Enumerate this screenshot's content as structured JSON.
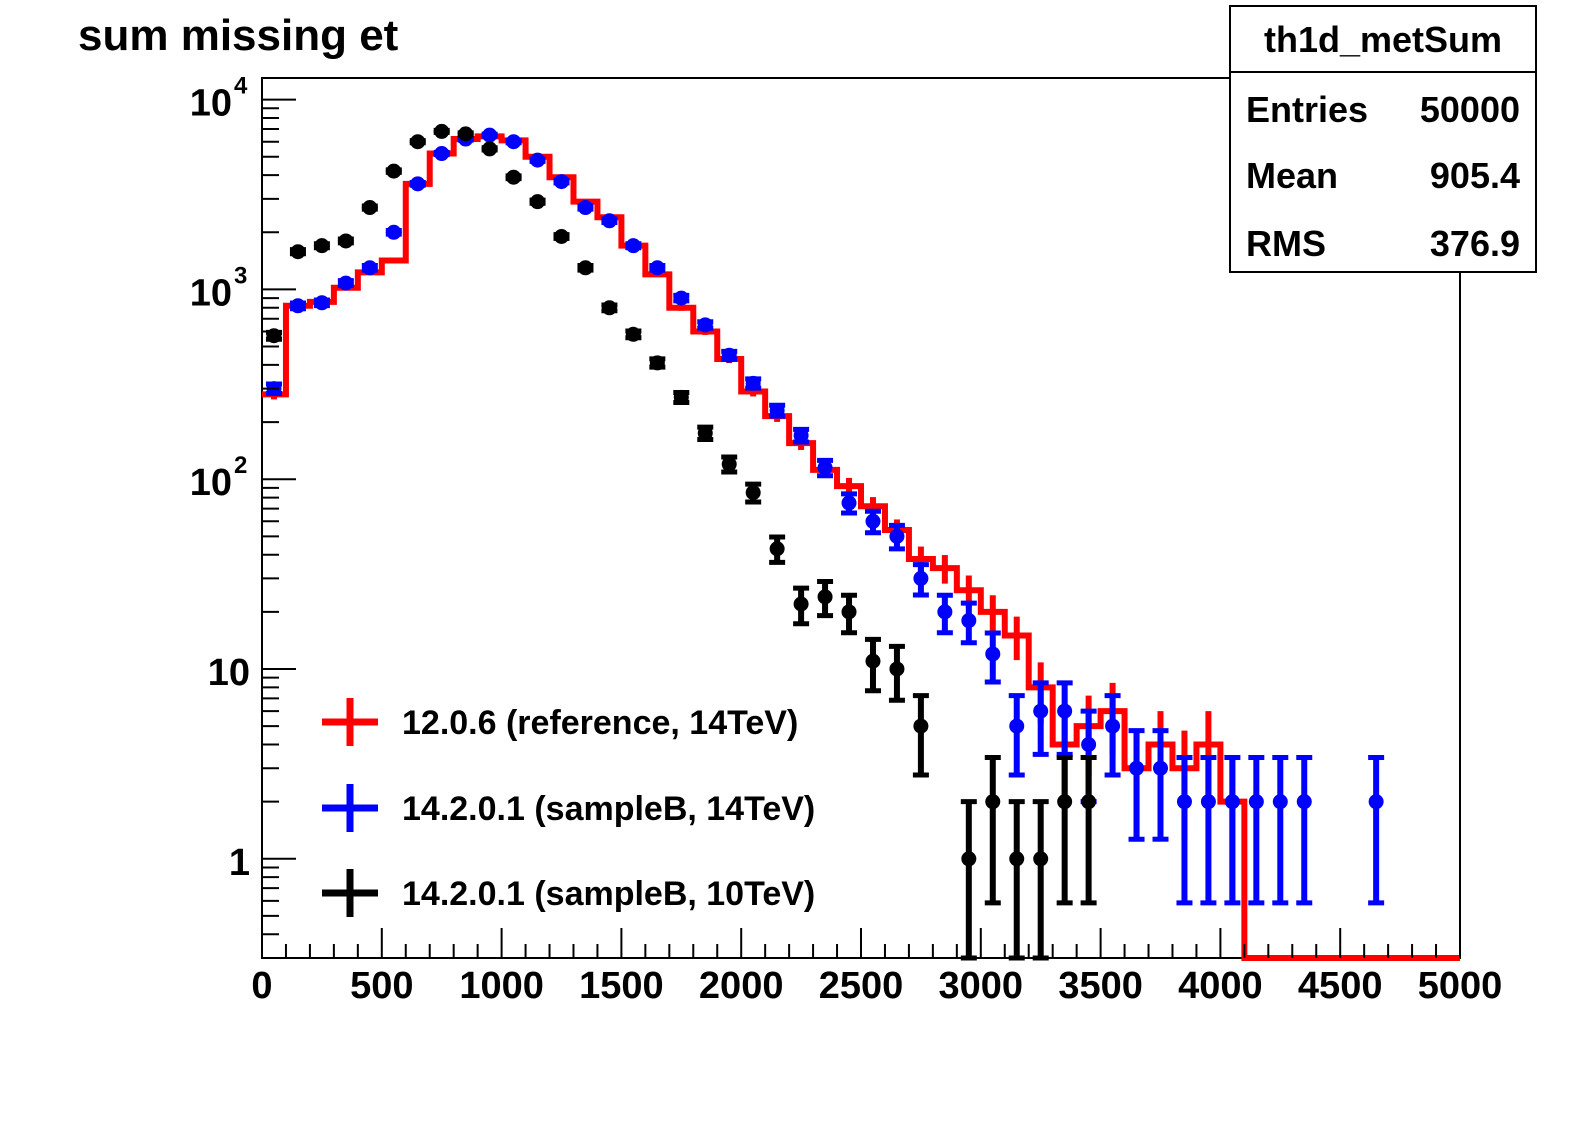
{
  "chart_data": {
    "type": "histogram",
    "title": "sum missing et",
    "xlabel": "",
    "ylabel": "",
    "xlim": [
      0,
      5000
    ],
    "ylim": [
      0.3,
      13000
    ],
    "yscale": "log",
    "grid": false,
    "bin_width": 100,
    "x_ticks": [
      {
        "value": 0,
        "label": "0"
      },
      {
        "value": 500,
        "label": "500"
      },
      {
        "value": 1000,
        "label": "1000"
      },
      {
        "value": 1500,
        "label": "1500"
      },
      {
        "value": 2000,
        "label": "2000"
      },
      {
        "value": 2500,
        "label": "2500"
      },
      {
        "value": 3000,
        "label": "3000"
      },
      {
        "value": 3500,
        "label": "3500"
      },
      {
        "value": 4000,
        "label": "4000"
      },
      {
        "value": 4500,
        "label": "4500"
      },
      {
        "value": 5000,
        "label": "5000"
      }
    ],
    "y_ticks": [
      {
        "value": 1,
        "base": "1",
        "exp": ""
      },
      {
        "value": 10,
        "base": "10",
        "exp": ""
      },
      {
        "value": 100,
        "base": "10",
        "exp": "2"
      },
      {
        "value": 1000,
        "base": "10",
        "exp": "3"
      },
      {
        "value": 10000,
        "base": "10",
        "exp": "4"
      }
    ],
    "stats_box": {
      "name": "th1d_metSum",
      "rows": [
        {
          "label": "Entries",
          "value": "50000"
        },
        {
          "label": "Mean",
          "value": "905.4"
        },
        {
          "label": "RMS",
          "value": "376.9"
        }
      ]
    },
    "legend_position": "bottom-left",
    "series": [
      {
        "name": "12.0.6 (reference, 14TeV)",
        "color": "#ff0000",
        "style": "step",
        "values": [
          280,
          820,
          860,
          1020,
          1230,
          1420,
          3600,
          5200,
          6200,
          6400,
          6100,
          5000,
          3900,
          2900,
          2400,
          1700,
          1200,
          800,
          600,
          430,
          290,
          215,
          155,
          112,
          92,
          72,
          54,
          38,
          34,
          26,
          20,
          15,
          8,
          4,
          5,
          6,
          3,
          4,
          3,
          4,
          2,
          0,
          0,
          0,
          0,
          0,
          0,
          0,
          0,
          0
        ]
      },
      {
        "name": "14.2.0.1 (sampleB, 14TeV)",
        "color": "#0000ff",
        "style": "points",
        "values": [
          300,
          820,
          850,
          1080,
          1300,
          2000,
          3600,
          5200,
          6200,
          6500,
          6000,
          4800,
          3700,
          2700,
          2300,
          1700,
          1300,
          900,
          650,
          450,
          320,
          230,
          170,
          115,
          75,
          60,
          50,
          30,
          20,
          18,
          12,
          5,
          6,
          6,
          4,
          5,
          3,
          3,
          2,
          2,
          2,
          2,
          2,
          2,
          0,
          0,
          2,
          0,
          0,
          0
        ]
      },
      {
        "name": "14.2.0.1 (sampleB, 10TeV)",
        "color": "#000000",
        "style": "points",
        "values": [
          570,
          1580,
          1700,
          1800,
          2700,
          4200,
          6000,
          6800,
          6600,
          5500,
          3900,
          2900,
          1900,
          1300,
          800,
          580,
          410,
          270,
          175,
          120,
          85,
          43,
          22,
          24,
          20,
          11,
          10,
          5,
          0,
          1,
          2,
          1,
          1,
          2,
          2,
          0,
          0,
          0,
          0,
          0,
          0,
          0,
          0,
          0,
          0,
          0,
          0,
          0,
          0,
          0
        ]
      }
    ]
  }
}
